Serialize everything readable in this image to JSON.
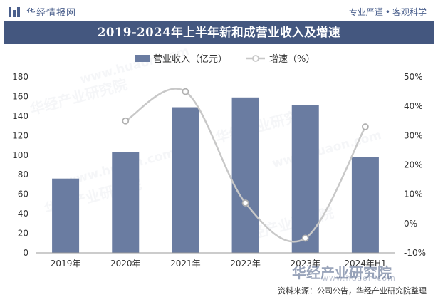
{
  "brand": {
    "name": "华经情报网",
    "icon": "bar-logo-icon"
  },
  "tagline": {
    "left": "专业严谨",
    "separator": "•",
    "right": "客观科学"
  },
  "watermark": {
    "text": "华经产业研究院",
    "url": "www.huaon.com"
  },
  "source": "资料来源：公司公告，华经产业研究院整理",
  "colors": {
    "bar": "#6a7ca1",
    "line": "#c8c8c8",
    "title_bg": "#44577f",
    "brand": "#4a5f8c"
  },
  "chart_data": {
    "type": "bar",
    "title": "2019-2024年上半年新和成营业收入及增速",
    "categories": [
      "2019年",
      "2020年",
      "2021年",
      "2022年",
      "2023年",
      "2024年H1"
    ],
    "series": [
      {
        "name": "营业收入（亿元）",
        "type": "bar",
        "axis": "left",
        "values": [
          76,
          103,
          149,
          159,
          151,
          98
        ]
      },
      {
        "name": "增速（%）",
        "type": "line",
        "axis": "right",
        "values": [
          null,
          35,
          45,
          7,
          -5,
          33
        ]
      }
    ],
    "y_left": {
      "min": 0,
      "max": 180,
      "ticks": [
        "0",
        "20",
        "40",
        "60",
        "80",
        "100",
        "120",
        "140",
        "160",
        "180"
      ]
    },
    "y_right": {
      "min": -10,
      "max": 50,
      "ticks": [
        "-10%",
        "0%",
        "10%",
        "20%",
        "30%",
        "40%",
        "50%"
      ]
    },
    "legend": {
      "position": "top-center"
    }
  }
}
